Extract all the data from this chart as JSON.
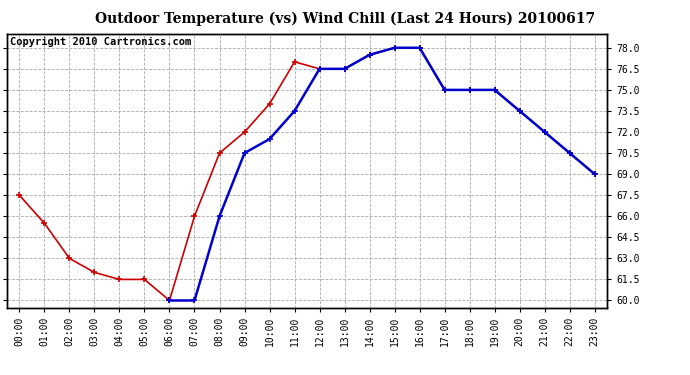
{
  "title": "Outdoor Temperature (vs) Wind Chill (Last 24 Hours) 20100617",
  "copyright": "Copyright 2010 Cartronics.com",
  "hours": [
    "00:00",
    "01:00",
    "02:00",
    "03:00",
    "04:00",
    "05:00",
    "06:00",
    "07:00",
    "08:00",
    "09:00",
    "10:00",
    "11:00",
    "12:00",
    "13:00",
    "14:00",
    "15:00",
    "16:00",
    "17:00",
    "18:00",
    "19:00",
    "20:00",
    "21:00",
    "22:00",
    "23:00"
  ],
  "temp_red": [
    67.5,
    65.5,
    63.0,
    62.0,
    61.5,
    61.5,
    60.0,
    66.0,
    70.5,
    72.0,
    74.0,
    77.0,
    76.5,
    76.5,
    77.5,
    78.0,
    78.0,
    75.0,
    75.0,
    75.0,
    73.5,
    72.0,
    70.5,
    69.0
  ],
  "wind_chill_blue": [
    null,
    null,
    null,
    null,
    null,
    null,
    60.0,
    60.0,
    66.0,
    70.5,
    71.5,
    73.5,
    76.5,
    76.5,
    77.5,
    78.0,
    78.0,
    75.0,
    75.0,
    75.0,
    73.5,
    72.0,
    70.5,
    69.0
  ],
  "ylim_min": 59.5,
  "ylim_max": 79.0,
  "yticks": [
    60.0,
    61.5,
    63.0,
    64.5,
    66.0,
    67.5,
    69.0,
    70.5,
    72.0,
    73.5,
    75.0,
    76.5,
    78.0
  ],
  "red_color": "#cc0000",
  "blue_color": "#0000cc",
  "background_color": "#ffffff",
  "grid_color": "#aaaaaa",
  "title_fontsize": 10,
  "copyright_fontsize": 7.5
}
